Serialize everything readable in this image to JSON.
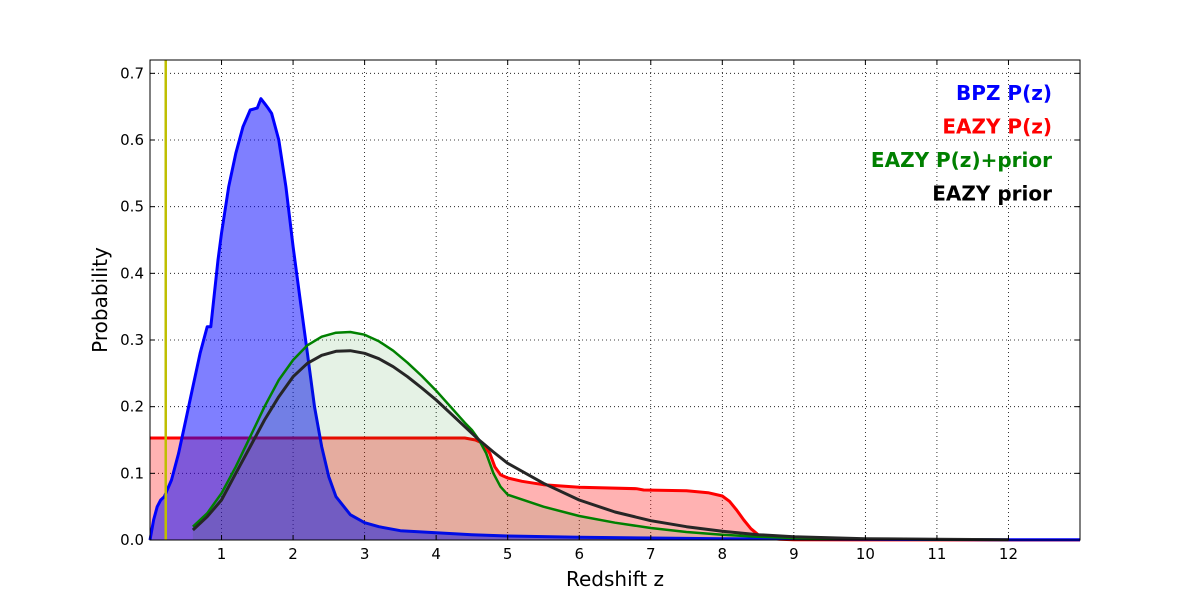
{
  "chart_data": {
    "type": "area",
    "xlabel": "Redshift z",
    "ylabel": "Probability",
    "xlim": [
      0,
      13
    ],
    "ylim": [
      0,
      0.72
    ],
    "xticks": [
      1,
      2,
      3,
      4,
      5,
      6,
      7,
      8,
      9,
      10,
      11,
      12
    ],
    "xtick_labels": [
      "1",
      "2",
      "3",
      "4",
      "5",
      "6",
      "7",
      "8",
      "9",
      "10",
      "11",
      "12"
    ],
    "yticks": [
      0.0,
      0.1,
      0.2,
      0.3,
      0.4,
      0.5,
      0.6,
      0.7
    ],
    "ytick_labels": [
      "0.0",
      "0.1",
      "0.2",
      "0.3",
      "0.4",
      "0.5",
      "0.6",
      "0.7"
    ],
    "grid": true,
    "legend_position": "top-right",
    "vertical_line": {
      "x": 0.22,
      "color": "#bfbf00"
    },
    "series": [
      {
        "name": "BPZ P(z)",
        "color": "#0000ff",
        "fill": "#0000ff",
        "fill_opacity": 0.5,
        "line_width": 3,
        "x": [
          0,
          0.05,
          0.1,
          0.15,
          0.2,
          0.3,
          0.4,
          0.5,
          0.6,
          0.7,
          0.8,
          0.85,
          0.9,
          0.95,
          1.0,
          1.1,
          1.2,
          1.3,
          1.4,
          1.5,
          1.55,
          1.6,
          1.65,
          1.7,
          1.8,
          1.9,
          2.0,
          2.1,
          2.2,
          2.3,
          2.4,
          2.5,
          2.6,
          2.8,
          3.0,
          3.2,
          3.5,
          4.0,
          4.5,
          5.0,
          6.0,
          7.0,
          8.0,
          9.0,
          10.0,
          11.0,
          12.0,
          13.0
        ],
        "y": [
          0.0,
          0.03,
          0.05,
          0.06,
          0.065,
          0.09,
          0.13,
          0.18,
          0.23,
          0.28,
          0.32,
          0.32,
          0.37,
          0.42,
          0.46,
          0.53,
          0.58,
          0.62,
          0.645,
          0.648,
          0.662,
          0.655,
          0.648,
          0.64,
          0.6,
          0.53,
          0.44,
          0.36,
          0.28,
          0.2,
          0.14,
          0.095,
          0.065,
          0.038,
          0.026,
          0.02,
          0.014,
          0.011,
          0.008,
          0.006,
          0.004,
          0.003,
          0.002,
          0.0015,
          0.001,
          0.0008,
          0.0005,
          0.0004
        ]
      },
      {
        "name": "EAZY P(z)",
        "color": "#ff0000",
        "fill": "#ff0000",
        "fill_opacity": 0.3,
        "line_width": 3,
        "x": [
          0,
          4.4,
          4.55,
          4.65,
          4.75,
          4.82,
          4.9,
          5.0,
          5.2,
          5.5,
          6.0,
          6.8,
          6.9,
          7.5,
          7.8,
          8.0,
          8.1,
          8.2,
          8.3,
          8.4,
          8.5,
          8.6,
          8.8,
          9.0,
          10.0,
          11.0,
          12.0,
          13.0
        ],
        "y": [
          0.153,
          0.153,
          0.15,
          0.145,
          0.13,
          0.11,
          0.098,
          0.093,
          0.088,
          0.083,
          0.079,
          0.077,
          0.075,
          0.074,
          0.071,
          0.066,
          0.058,
          0.045,
          0.03,
          0.017,
          0.008,
          0.003,
          0.001,
          0.0005,
          0.0002,
          0.0001,
          0.0,
          0.0
        ]
      },
      {
        "name": "EAZY P(z)+prior",
        "color": "#008000",
        "fill": "#008000",
        "fill_opacity": 0.1,
        "line_width": 2.5,
        "x": [
          0.6,
          0.8,
          1.0,
          1.2,
          1.4,
          1.6,
          1.8,
          2.0,
          2.2,
          2.4,
          2.6,
          2.8,
          3.0,
          3.2,
          3.4,
          3.6,
          3.8,
          4.0,
          4.2,
          4.4,
          4.5,
          4.6,
          4.7,
          4.8,
          4.9,
          5.0,
          5.5,
          6.0,
          6.5,
          7.0,
          7.5,
          8.0,
          8.5,
          9.0,
          10.0,
          11.0,
          12.0
        ],
        "y": [
          0.02,
          0.04,
          0.07,
          0.11,
          0.155,
          0.2,
          0.24,
          0.27,
          0.292,
          0.305,
          0.311,
          0.312,
          0.308,
          0.298,
          0.284,
          0.266,
          0.246,
          0.224,
          0.2,
          0.176,
          0.165,
          0.15,
          0.13,
          0.1,
          0.08,
          0.068,
          0.05,
          0.036,
          0.026,
          0.018,
          0.012,
          0.008,
          0.005,
          0.003,
          0.0015,
          0.0007,
          0.0003
        ]
      },
      {
        "name": "EAZY prior",
        "color": "#262626",
        "fill": null,
        "fill_opacity": 0,
        "line_width": 3,
        "x": [
          0.6,
          0.8,
          1.0,
          1.2,
          1.4,
          1.6,
          1.8,
          2.0,
          2.2,
          2.4,
          2.6,
          2.8,
          3.0,
          3.2,
          3.4,
          3.6,
          3.8,
          4.0,
          4.2,
          4.4,
          4.6,
          4.8,
          5.0,
          5.5,
          6.0,
          6.5,
          7.0,
          7.5,
          8.0,
          8.5,
          9.0,
          10.0,
          11.0,
          12.0
        ],
        "y": [
          0.015,
          0.035,
          0.06,
          0.1,
          0.14,
          0.18,
          0.215,
          0.245,
          0.265,
          0.277,
          0.283,
          0.284,
          0.28,
          0.272,
          0.26,
          0.245,
          0.228,
          0.21,
          0.19,
          0.17,
          0.15,
          0.132,
          0.115,
          0.085,
          0.06,
          0.042,
          0.029,
          0.02,
          0.013,
          0.008,
          0.005,
          0.002,
          0.001,
          0.0004
        ]
      }
    ]
  }
}
